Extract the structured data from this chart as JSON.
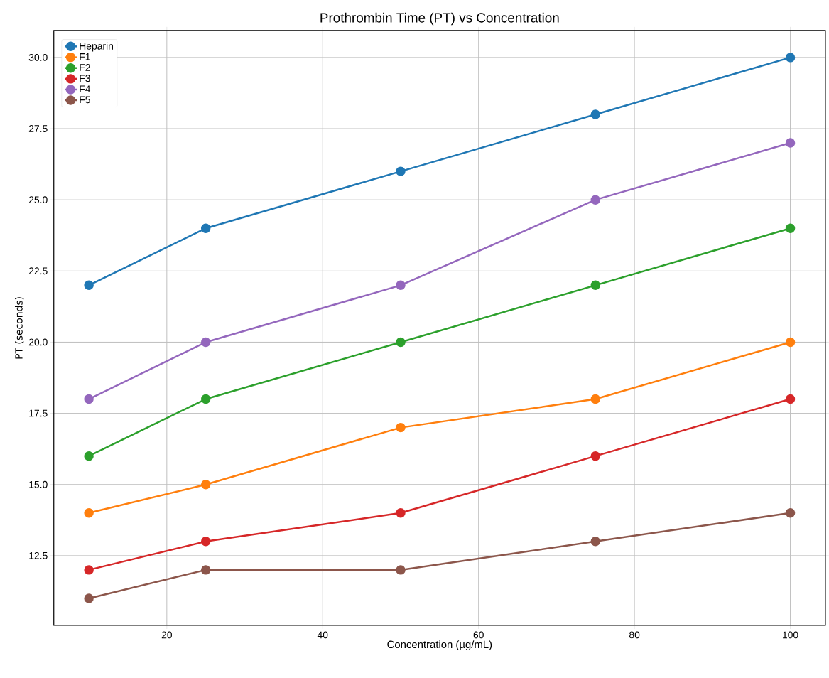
{
  "chart_data": {
    "type": "line",
    "title": "Prothrombin Time (PT) vs Concentration",
    "xlabel": "Concentration (µg/mL)",
    "ylabel": "PT (seconds)",
    "x": [
      10,
      25,
      50,
      75,
      100
    ],
    "series": [
      {
        "name": "Heparin",
        "color": "#1f77b4",
        "values": [
          22,
          24,
          26,
          28,
          30
        ]
      },
      {
        "name": "F1",
        "color": "#ff7f0e",
        "values": [
          14,
          15,
          17,
          18,
          20
        ]
      },
      {
        "name": "F2",
        "color": "#2ca02c",
        "values": [
          16,
          18,
          20,
          22,
          24
        ]
      },
      {
        "name": "F3",
        "color": "#d62728",
        "values": [
          12,
          13,
          14,
          16,
          18
        ]
      },
      {
        "name": "F4",
        "color": "#9467bd",
        "values": [
          18,
          20,
          22,
          25,
          27
        ]
      },
      {
        "name": "F5",
        "color": "#8c564b",
        "values": [
          11,
          12,
          12,
          13,
          14
        ]
      }
    ],
    "xlim": [
      5.5,
      104.5
    ],
    "ylim": [
      10.05,
      30.95
    ],
    "xticks": [
      20,
      40,
      60,
      80,
      100
    ],
    "yticks": [
      12.5,
      {
        "value": 15,
        "label": "15.0"
      },
      17.5,
      {
        "value": 20,
        "label": "20.0"
      },
      22.5,
      {
        "value": 25,
        "label": "25.0"
      },
      27.5,
      {
        "value": 30,
        "label": "30.0"
      }
    ],
    "grid": true,
    "legend": "top left",
    "marker": "circle",
    "line_style": "solid"
  }
}
